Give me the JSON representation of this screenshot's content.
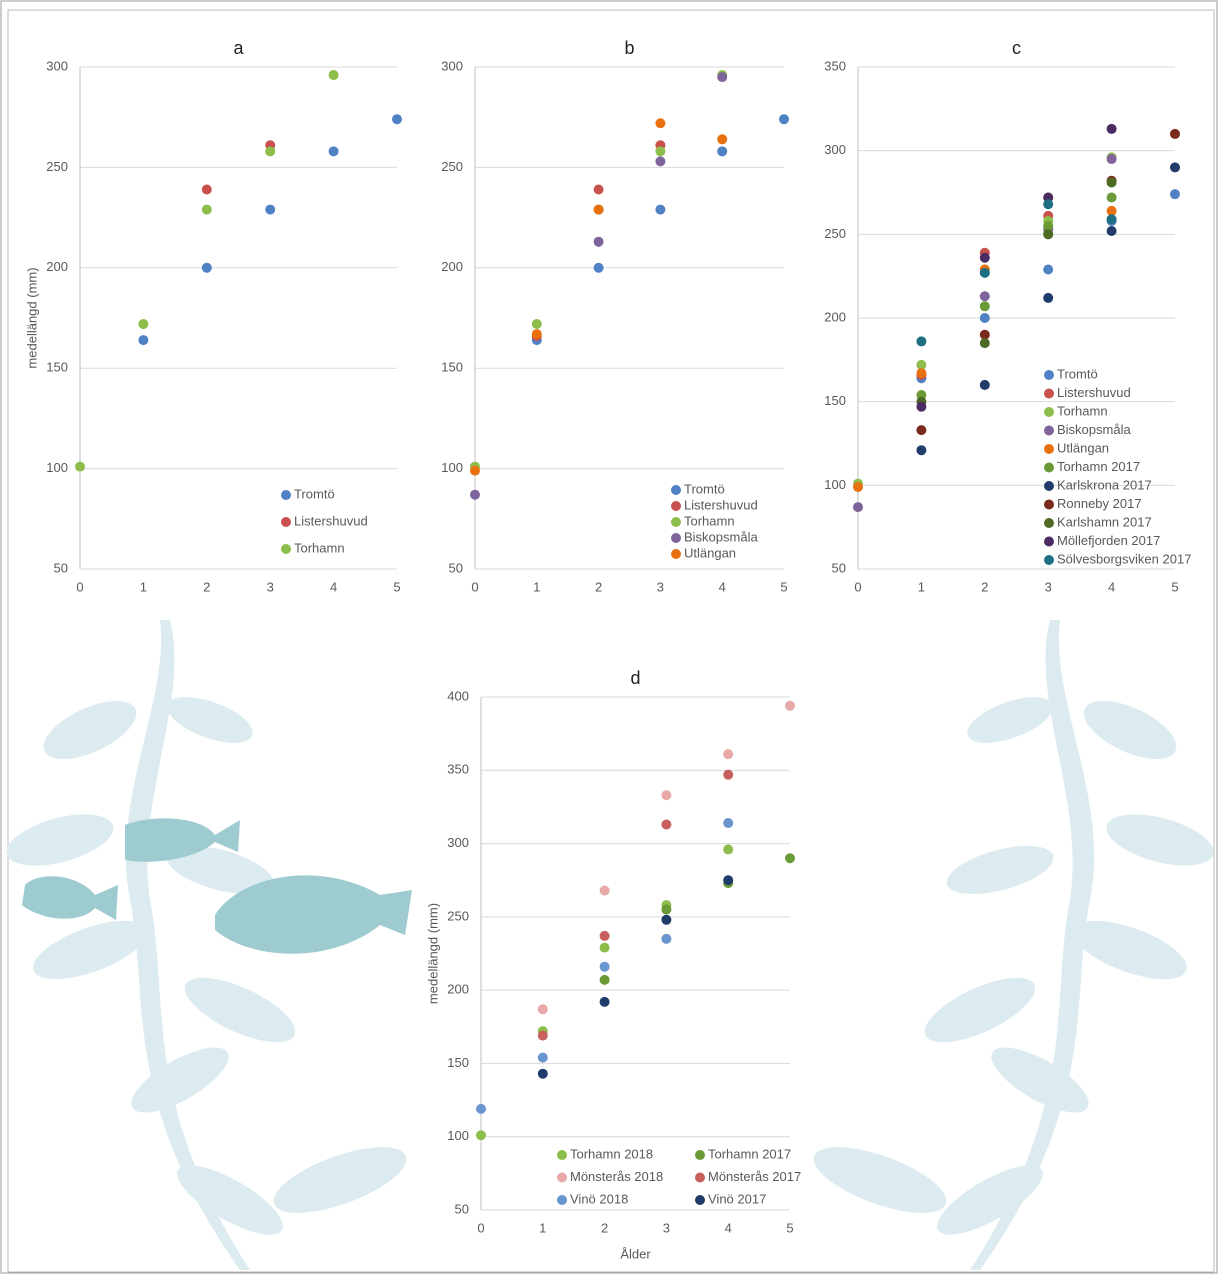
{
  "chart_data": [
    {
      "type": "scatter",
      "title": "a",
      "y_label": "medellängd (mm)",
      "x": [
        0,
        1,
        2,
        3,
        4,
        5
      ],
      "xlim": [
        0,
        5
      ],
      "xticks": [
        0,
        1,
        2,
        3,
        4,
        5
      ],
      "ylim": [
        50,
        300
      ],
      "yticks": [
        50,
        100,
        150,
        200,
        250,
        300
      ],
      "grid": true,
      "legend": "lower right",
      "series": [
        {
          "name": "Tromtö",
          "color": "#4f81c4",
          "values": [
            null,
            164,
            200,
            229,
            258,
            274
          ]
        },
        {
          "name": "Listershuvud",
          "color": "#c8504d",
          "values": [
            null,
            null,
            239,
            261,
            null,
            null
          ]
        },
        {
          "name": "Torhamn",
          "color": "#8dbd4b",
          "values": [
            101,
            172,
            229,
            258,
            296,
            null
          ]
        }
      ]
    },
    {
      "type": "scatter",
      "title": "b",
      "x": [
        0,
        1,
        2,
        3,
        4,
        5
      ],
      "xlim": [
        0,
        5
      ],
      "xticks": [
        0,
        1,
        2,
        3,
        4,
        5
      ],
      "ylim": [
        50,
        300
      ],
      "yticks": [
        50,
        100,
        150,
        200,
        250,
        300
      ],
      "grid": true,
      "legend": "lower right",
      "series": [
        {
          "name": "Tromtö",
          "color": "#4f81c4",
          "values": [
            null,
            164,
            200,
            229,
            258,
            274
          ]
        },
        {
          "name": "Listershuvud",
          "color": "#c8504d",
          "values": [
            null,
            166,
            239,
            261,
            null,
            null
          ]
        },
        {
          "name": "Torhamn",
          "color": "#8dbd4b",
          "values": [
            101,
            172,
            229,
            258,
            296,
            null
          ]
        },
        {
          "name": "Biskopsmåla",
          "color": "#7f649c",
          "values": [
            87,
            null,
            213,
            253,
            295,
            null
          ]
        },
        {
          "name": "Utlängan",
          "color": "#e8700f",
          "values": [
            99,
            167,
            229,
            272,
            264,
            null
          ]
        }
      ]
    },
    {
      "type": "scatter",
      "title": "c",
      "x": [
        0,
        1,
        2,
        3,
        4,
        5
      ],
      "xlim": [
        0,
        5
      ],
      "xticks": [
        0,
        1,
        2,
        3,
        4,
        5
      ],
      "ylim": [
        50,
        350
      ],
      "yticks": [
        50,
        100,
        150,
        200,
        250,
        300,
        350
      ],
      "grid": true,
      "legend": "lower right",
      "series": [
        {
          "name": "Tromtö",
          "color": "#4f81c4",
          "values": [
            null,
            164,
            200,
            229,
            258,
            274
          ]
        },
        {
          "name": "Listershuvud",
          "color": "#c8504d",
          "values": [
            null,
            166,
            239,
            261,
            null,
            null
          ]
        },
        {
          "name": "Torhamn",
          "color": "#8dbd4b",
          "values": [
            101,
            172,
            229,
            258,
            296,
            null
          ]
        },
        {
          "name": "Biskopsmåla",
          "color": "#7f649c",
          "values": [
            87,
            null,
            213,
            253,
            295,
            null
          ]
        },
        {
          "name": "Utlängan",
          "color": "#e8700f",
          "values": [
            99,
            167,
            229,
            272,
            264,
            null
          ]
        },
        {
          "name": "Torhamn 2017",
          "color": "#6a9a36",
          "values": [
            null,
            154,
            207,
            255,
            272,
            null
          ]
        },
        {
          "name": "Karlskrona 2017",
          "color": "#1f3c6b",
          "values": [
            null,
            121,
            160,
            212,
            252,
            290
          ]
        },
        {
          "name": "Ronneby 2017",
          "color": "#7a2a1c",
          "values": [
            null,
            133,
            190,
            null,
            282,
            310
          ]
        },
        {
          "name": "Karlshamn 2017",
          "color": "#4d6a25",
          "values": [
            null,
            150,
            185,
            250,
            281,
            null
          ]
        },
        {
          "name": "Möllefjorden 2017",
          "color": "#4a2c63",
          "values": [
            null,
            147,
            236,
            272,
            313,
            null
          ]
        },
        {
          "name": "Sölvesborgsviken 2017",
          "color": "#1f6f82",
          "values": [
            null,
            186,
            227,
            268,
            259,
            null
          ]
        }
      ]
    },
    {
      "type": "scatter",
      "title": "d",
      "y_label": "medellängd (mm)",
      "x_label": "Ålder",
      "x": [
        0,
        1,
        2,
        3,
        4,
        5
      ],
      "xlim": [
        0,
        5
      ],
      "xticks": [
        0,
        1,
        2,
        3,
        4,
        5
      ],
      "ylim": [
        50,
        400
      ],
      "yticks": [
        50,
        100,
        150,
        200,
        250,
        300,
        350,
        400
      ],
      "grid": true,
      "legend": "lower center",
      "series": [
        {
          "name": "Torhamn 2018",
          "color": "#8dbd4b",
          "values": [
            101,
            172,
            229,
            258,
            296,
            null
          ]
        },
        {
          "name": "Torhamn 2017",
          "color": "#6a9a36",
          "values": [
            null,
            null,
            207,
            255,
            273,
            290
          ]
        },
        {
          "name": "Mönsterås 2018",
          "color": "#e8aaa8",
          "values": [
            null,
            187,
            268,
            333,
            361,
            394
          ]
        },
        {
          "name": "Mönsterås 2017",
          "color": "#c8605e",
          "values": [
            null,
            169,
            237,
            313,
            347,
            null
          ]
        },
        {
          "name": "Vinö 2018",
          "color": "#6b95cf",
          "values": [
            119,
            154,
            216,
            235,
            314,
            null
          ]
        },
        {
          "name": "Vinö 2017",
          "color": "#1f3c6b",
          "values": [
            null,
            143,
            192,
            248,
            275,
            null
          ]
        }
      ]
    }
  ]
}
